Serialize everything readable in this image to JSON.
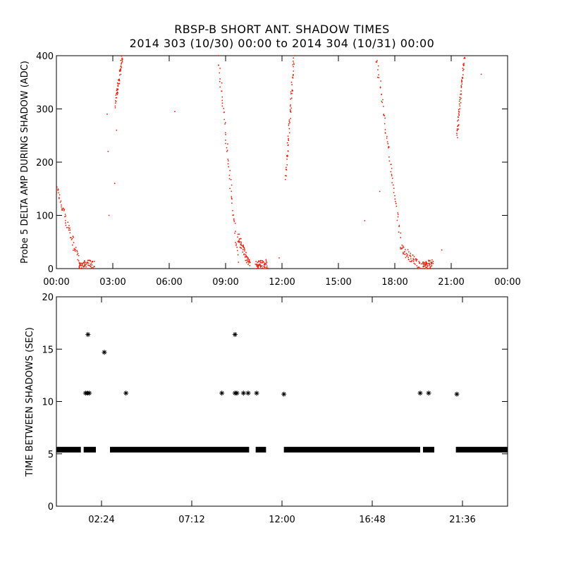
{
  "title_line1": "RBSP-B SHORT ANT. SHADOW TIMES",
  "title_line2": "2014 303 (10/30) 00:00 to 2014 304 (10/31) 00:00",
  "colors": {
    "top_points": "#e8200c",
    "bottom_points": "#000000",
    "axes": "#000000"
  },
  "chart_data": [
    {
      "type": "scatter",
      "ylabel": "Probe 5 DELTA AMP DURING SHADOW (ADC)",
      "xlim": [
        0,
        24
      ],
      "ylim": [
        0,
        400
      ],
      "x_tick_labels": [
        "00:00",
        "03:00",
        "06:00",
        "09:00",
        "12:00",
        "15:00",
        "18:00",
        "21:00",
        "00:00"
      ],
      "x_tick_values": [
        0,
        3,
        6,
        9,
        12,
        15,
        18,
        21,
        24
      ],
      "y_tick_values": [
        0,
        100,
        200,
        300,
        400
      ],
      "y_tick_labels": [
        "0",
        "100",
        "200",
        "300",
        "400"
      ],
      "marker": "dot",
      "series": [
        {
          "segments": [
            {
              "x": [
                0.0,
                1.3
              ],
              "y": [
                150,
                0
              ]
            },
            {
              "x": [
                1.2,
                2.0
              ],
              "y": [
                5,
                8
              ]
            },
            {
              "x": [
                3.15,
                3.5
              ],
              "y": [
                310,
                400
              ]
            },
            {
              "x": [
                8.6,
                9.65
              ],
              "y": [
                400,
                20
              ]
            },
            {
              "x": [
                9.65,
                10.3
              ],
              "y": [
                60,
                5
              ]
            },
            {
              "x": [
                10.6,
                11.2
              ],
              "y": [
                5,
                8
              ]
            },
            {
              "x": [
                12.2,
                12.65
              ],
              "y": [
                170,
                400
              ]
            },
            {
              "x": [
                17.0,
                18.3
              ],
              "y": [
                400,
                60
              ]
            },
            {
              "x": [
                18.3,
                19.4
              ],
              "y": [
                40,
                3
              ]
            },
            {
              "x": [
                19.5,
                20.0
              ],
              "y": [
                5,
                8
              ]
            },
            {
              "x": [
                21.3,
                21.7
              ],
              "y": [
                250,
                400
              ]
            }
          ],
          "isolated": [
            {
              "x": 2.7,
              "y": 290
            },
            {
              "x": 2.75,
              "y": 220
            },
            {
              "x": 2.8,
              "y": 100
            },
            {
              "x": 3.2,
              "y": 260
            },
            {
              "x": 3.1,
              "y": 160
            },
            {
              "x": 6.3,
              "y": 295
            },
            {
              "x": 11.85,
              "y": 20
            },
            {
              "x": 16.4,
              "y": 90
            },
            {
              "x": 17.2,
              "y": 145
            },
            {
              "x": 20.5,
              "y": 35
            },
            {
              "x": 22.6,
              "y": 365
            }
          ]
        }
      ]
    },
    {
      "type": "scatter",
      "ylabel": "TIME BETWEEN SHADOWS (SEC)",
      "xlim": [
        0,
        24
      ],
      "ylim": [
        0,
        20
      ],
      "x_tick_labels": [
        "02:24",
        "07:12",
        "12:00",
        "16:48",
        "21:36"
      ],
      "x_tick_values": [
        2.4,
        7.2,
        12.0,
        16.8,
        21.6
      ],
      "y_tick_values": [
        0,
        5,
        10,
        15,
        20
      ],
      "y_tick_labels": [
        "0",
        "5",
        "10",
        "15",
        "20"
      ],
      "marker": "asterisk",
      "series": [
        {
          "baseline_y": 5.4,
          "baseline_ranges": [
            [
              0.0,
              1.3
            ],
            [
              1.45,
              2.1
            ],
            [
              2.85,
              10.25
            ],
            [
              10.6,
              11.15
            ],
            [
              12.1,
              19.35
            ],
            [
              19.5,
              20.1
            ],
            [
              21.25,
              24.0
            ]
          ],
          "points": [
            {
              "x": 1.68,
              "y": 16.4
            },
            {
              "x": 1.55,
              "y": 10.8
            },
            {
              "x": 1.65,
              "y": 10.8
            },
            {
              "x": 1.75,
              "y": 10.8
            },
            {
              "x": 2.55,
              "y": 14.7
            },
            {
              "x": 3.7,
              "y": 10.8
            },
            {
              "x": 8.8,
              "y": 10.8
            },
            {
              "x": 9.5,
              "y": 16.4
            },
            {
              "x": 9.5,
              "y": 10.8
            },
            {
              "x": 9.6,
              "y": 10.8
            },
            {
              "x": 9.95,
              "y": 10.8
            },
            {
              "x": 10.2,
              "y": 10.8
            },
            {
              "x": 10.65,
              "y": 10.8
            },
            {
              "x": 12.1,
              "y": 10.7
            },
            {
              "x": 19.35,
              "y": 10.8
            },
            {
              "x": 19.8,
              "y": 10.8
            },
            {
              "x": 21.3,
              "y": 10.7
            }
          ]
        }
      ]
    }
  ]
}
